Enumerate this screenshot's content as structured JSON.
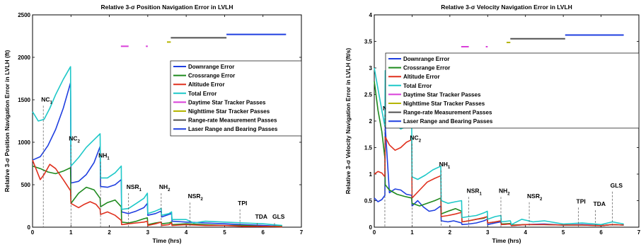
{
  "chart_data": [
    {
      "type": "line",
      "title": "Relative 3-σ Position Navigation Error in LVLH",
      "xlabel": "Time (hrs)",
      "ylabel": "Relative 3-σ Position Navigation Error in LVLH (ft)",
      "xlim": [
        0,
        7
      ],
      "ylim": [
        0,
        2500
      ],
      "xticks": [
        "0",
        "1",
        "2",
        "3",
        "4",
        "5",
        "6",
        "7"
      ],
      "yticks": [
        "0",
        "500",
        "1000",
        "1500",
        "2000",
        "2500"
      ],
      "legend": "upper-right",
      "series": [
        {
          "name": "Downrange Error",
          "color": "#1f3fe0",
          "x": [
            0,
            0.2,
            0.4,
            0.6,
            0.8,
            0.99,
            1.0,
            1.2,
            1.4,
            1.6,
            1.76,
            1.77,
            1.95,
            2.15,
            2.31,
            2.32,
            2.5,
            2.7,
            2.9,
            2.99,
            3.0,
            3.2,
            3.35,
            3.36,
            3.55,
            3.62,
            3.63,
            4.0,
            4.5,
            5.0,
            5.5,
            6.0,
            6.5
          ],
          "y": [
            790,
            830,
            960,
            1150,
            1400,
            1700,
            520,
            540,
            620,
            760,
            950,
            480,
            470,
            500,
            560,
            180,
            160,
            190,
            230,
            280,
            140,
            160,
            190,
            120,
            150,
            160,
            70,
            60,
            50,
            40,
            30,
            20,
            10
          ]
        },
        {
          "name": "Crossrange Error",
          "color": "#1e8a1e",
          "x": [
            0,
            0.2,
            0.4,
            0.6,
            0.8,
            0.99,
            1.0,
            1.2,
            1.4,
            1.6,
            1.76,
            1.77,
            1.95,
            2.15,
            2.31,
            2.32,
            2.5,
            2.7,
            2.9,
            2.99,
            3.0,
            3.2,
            3.35,
            3.36,
            3.55,
            3.62,
            3.63,
            4.0,
            4.5,
            5.0,
            5.5,
            6.0,
            6.5
          ],
          "y": [
            720,
            690,
            650,
            630,
            660,
            700,
            280,
            400,
            470,
            440,
            340,
            240,
            290,
            320,
            240,
            60,
            50,
            70,
            100,
            110,
            30,
            50,
            60,
            40,
            50,
            60,
            30,
            40,
            30,
            20,
            20,
            10,
            10
          ]
        },
        {
          "name": "Altitude Error",
          "color": "#e0301e",
          "x": [
            0,
            0.2,
            0.3,
            0.45,
            0.6,
            0.8,
            0.99,
            1.0,
            1.2,
            1.35,
            1.5,
            1.65,
            1.76,
            1.77,
            1.95,
            2.15,
            2.31,
            2.32,
            2.5,
            2.7,
            2.9,
            2.99,
            3.0,
            3.2,
            3.35,
            3.36,
            3.55,
            3.62,
            3.63,
            4.0,
            4.5,
            5.0,
            5.5,
            6.0,
            6.5
          ],
          "y": [
            790,
            560,
            620,
            740,
            690,
            560,
            430,
            280,
            230,
            270,
            300,
            270,
            210,
            150,
            180,
            140,
            80,
            30,
            40,
            50,
            60,
            70,
            20,
            40,
            60,
            20,
            30,
            50,
            20,
            30,
            20,
            20,
            10,
            10,
            5
          ]
        },
        {
          "name": "Total Error",
          "color": "#1ec8c8",
          "x": [
            0,
            0.15,
            0.3,
            0.45,
            0.6,
            0.8,
            0.99,
            1.0,
            1.2,
            1.4,
            1.6,
            1.76,
            1.77,
            1.95,
            2.15,
            2.31,
            2.32,
            2.5,
            2.7,
            2.9,
            2.99,
            3.0,
            3.2,
            3.35,
            3.36,
            3.55,
            3.62,
            3.63,
            4.0,
            4.2,
            4.5,
            5.0,
            5.5,
            6.0,
            6.5
          ],
          "y": [
            1360,
            1250,
            1270,
            1400,
            1560,
            1740,
            1890,
            720,
            820,
            940,
            1030,
            1100,
            580,
            580,
            640,
            720,
            210,
            220,
            280,
            340,
            400,
            160,
            190,
            220,
            140,
            160,
            180,
            90,
            90,
            50,
            70,
            60,
            50,
            40,
            20
          ]
        },
        {
          "name": "Daytime Star Tracker Passes",
          "color": "#d93fd9",
          "x": [
            2.3,
            2.5,
            2.95,
            3.0
          ],
          "y": [
            2130,
            2130,
            2130,
            2130
          ]
        },
        {
          "name": "Nighttime Star Tracker Passes",
          "color": "#b5b500",
          "x": [
            3.5,
            3.6
          ],
          "y": [
            2180,
            2180
          ]
        },
        {
          "name": "Range-rate Measurement Passes",
          "color": "#505050",
          "x": [
            3.6,
            5.05
          ],
          "y": [
            2230,
            2230
          ]
        },
        {
          "name": "Laser Range and Bearing Passes",
          "color": "#1f3fe0",
          "x": [
            5.05,
            6.6
          ],
          "y": [
            2270,
            2270
          ]
        }
      ],
      "events": [
        {
          "label": "NC",
          "sub": "1",
          "x": 0.28,
          "label_y": 1480
        },
        {
          "label": "NC",
          "sub": "2",
          "x": 1.0,
          "label_y": 1020
        },
        {
          "label": "NH",
          "sub": "1",
          "x": 1.77,
          "label_y": 820
        },
        {
          "label": "NSR",
          "sub": "1",
          "x": 2.5,
          "label_y": 450
        },
        {
          "label": "NH",
          "sub": "2",
          "x": 3.35,
          "label_y": 450
        },
        {
          "label": "NSR",
          "sub": "2",
          "x": 4.1,
          "label_y": 340
        },
        {
          "label": "TPI",
          "x": 5.4,
          "label_y": 260
        },
        {
          "label": "TDA",
          "x": 5.85,
          "label_y": 100
        },
        {
          "label": "GLS",
          "x": 6.3,
          "label_y": 100
        }
      ]
    },
    {
      "type": "line",
      "title": "Relative 3-σ Velocity Navigation Error in LVLH",
      "xlabel": "Time (hrs)",
      "ylabel": "Relative 3-σ Velocity Navigation Error in LVLH (ft/s)",
      "xlim": [
        0,
        7
      ],
      "ylim": [
        0,
        4
      ],
      "xticks": [
        "0",
        "1",
        "2",
        "3",
        "4",
        "5",
        "6",
        "7"
      ],
      "yticks": [
        "0",
        "0.5",
        "1",
        "1.5",
        "2",
        "2.5",
        "3",
        "3.5",
        "4"
      ],
      "legend": "upper-right",
      "series": [
        {
          "name": "Downrange Error",
          "color": "#1f3fe0",
          "x": [
            0,
            0.1,
            0.2,
            0.28,
            0.29,
            0.4,
            0.55,
            0.7,
            0.85,
            0.99,
            1.0,
            1.15,
            1.3,
            1.45,
            1.6,
            1.76,
            1.77,
            1.95,
            2.1,
            2.31,
            2.32,
            2.5,
            2.7,
            2.9,
            2.99,
            3.0,
            3.2,
            3.35,
            3.36,
            3.6,
            3.63,
            4.0,
            4.5,
            5.0,
            5.5,
            6.0,
            6.3,
            6.6
          ],
          "y": [
            0.55,
            0.48,
            0.52,
            0.6,
            1.9,
            0.65,
            0.72,
            0.7,
            0.62,
            0.6,
            0.4,
            0.5,
            0.38,
            0.3,
            0.32,
            0.4,
            0.12,
            0.1,
            0.12,
            0.08,
            0.05,
            0.06,
            0.08,
            0.12,
            0.15,
            0.05,
            0.08,
            0.1,
            0.05,
            0.06,
            0.03,
            0.05,
            0.06,
            0.04,
            0.05,
            0.03,
            0.05,
            0.04
          ]
        },
        {
          "name": "Crossrange Error",
          "color": "#1e8a1e",
          "x": [
            0,
            0.1,
            0.2,
            0.28,
            0.29,
            0.4,
            0.6,
            0.8,
            0.99,
            1.0,
            1.2,
            1.4,
            1.6,
            1.76,
            1.77,
            1.95,
            2.15,
            2.31,
            2.32,
            2.5,
            2.7,
            2.9,
            2.99,
            3.0,
            3.2,
            3.35,
            3.36,
            3.6,
            3.63,
            4.0,
            4.5,
            5.0,
            5.5,
            6.0,
            6.3,
            6.6
          ],
          "y": [
            2.75,
            2.2,
            1.8,
            1.3,
            0.8,
            0.7,
            0.62,
            0.58,
            0.55,
            0.45,
            0.4,
            0.45,
            0.5,
            0.55,
            0.25,
            0.3,
            0.35,
            0.3,
            0.1,
            0.12,
            0.15,
            0.17,
            0.2,
            0.08,
            0.1,
            0.12,
            0.06,
            0.07,
            0.04,
            0.05,
            0.05,
            0.04,
            0.04,
            0.03,
            0.05,
            0.04
          ]
        },
        {
          "name": "Altitude Error",
          "color": "#e0301e",
          "x": [
            0,
            0.1,
            0.2,
            0.28,
            0.29,
            0.4,
            0.55,
            0.7,
            0.85,
            0.99,
            1.0,
            1.2,
            1.4,
            1.6,
            1.76,
            1.77,
            1.95,
            2.15,
            2.31,
            2.32,
            2.5,
            2.7,
            2.9,
            2.99,
            3.0,
            3.2,
            3.35,
            3.36,
            3.6,
            3.63,
            4.0,
            4.5,
            5.0,
            5.5,
            6.0,
            6.3,
            6.6
          ],
          "y": [
            1.0,
            1.05,
            1.02,
            0.95,
            1.7,
            1.55,
            1.45,
            1.5,
            1.6,
            1.65,
            0.55,
            0.7,
            0.85,
            0.92,
            0.97,
            0.2,
            0.22,
            0.25,
            0.28,
            0.1,
            0.12,
            0.15,
            0.18,
            0.2,
            0.08,
            0.1,
            0.12,
            0.05,
            0.06,
            0.03,
            0.05,
            0.05,
            0.04,
            0.04,
            0.03,
            0.05,
            0.04
          ]
        },
        {
          "name": "Total Error",
          "color": "#1ec8c8",
          "x": [
            0,
            0.1,
            0.2,
            0.28,
            0.29,
            0.4,
            0.55,
            0.7,
            0.85,
            0.99,
            1.0,
            1.15,
            1.35,
            1.55,
            1.76,
            1.77,
            1.95,
            2.15,
            2.31,
            2.32,
            2.5,
            2.7,
            2.9,
            2.99,
            3.0,
            3.2,
            3.35,
            3.36,
            3.6,
            3.63,
            3.9,
            4.2,
            4.5,
            5.0,
            5.5,
            6.0,
            6.3,
            6.6
          ],
          "y": [
            3.0,
            2.6,
            2.2,
            1.9,
            2.95,
            2.2,
            1.95,
            1.85,
            1.9,
            1.95,
            0.95,
            0.9,
            0.98,
            1.08,
            1.15,
            0.5,
            0.45,
            0.48,
            0.5,
            0.18,
            0.2,
            0.22,
            0.27,
            0.3,
            0.15,
            0.2,
            0.22,
            0.1,
            0.12,
            0.05,
            0.15,
            0.1,
            0.12,
            0.06,
            0.08,
            0.05,
            0.1,
            0.06
          ]
        },
        {
          "name": "Daytime Star Tracker Passes",
          "color": "#d93fd9",
          "x": [
            2.3,
            2.5,
            2.95,
            3.0
          ],
          "y": [
            3.4,
            3.4,
            3.4,
            3.4
          ]
        },
        {
          "name": "Nighttime Star Tracker Passes",
          "color": "#b5b500",
          "x": [
            3.5,
            3.6
          ],
          "y": [
            3.48,
            3.48
          ]
        },
        {
          "name": "Range-rate Measurement Passes",
          "color": "#505050",
          "x": [
            3.6,
            5.05
          ],
          "y": [
            3.55,
            3.55
          ]
        },
        {
          "name": "Laser Range and Bearing Passes",
          "color": "#1f3fe0",
          "x": [
            5.05,
            6.6
          ],
          "y": [
            3.62,
            3.62
          ]
        }
      ],
      "events": [
        {
          "label": "NC",
          "sub": "1",
          "x": 0.28,
          "label_y": 2.2
        },
        {
          "label": "NC",
          "sub": "2",
          "x": 1.0,
          "label_y": 1.65
        },
        {
          "label": "NH",
          "sub": "1",
          "x": 1.77,
          "label_y": 1.15
        },
        {
          "label": "NSR",
          "sub": "1",
          "x": 2.5,
          "label_y": 0.65
        },
        {
          "label": "NH",
          "sub": "2",
          "x": 3.35,
          "label_y": 0.65
        },
        {
          "label": "NSR",
          "sub": "2",
          "x": 4.1,
          "label_y": 0.55
        },
        {
          "label": "TPI",
          "x": 5.4,
          "label_y": 0.45
        },
        {
          "label": "TDA",
          "x": 5.85,
          "label_y": 0.4
        },
        {
          "label": "GLS",
          "x": 6.3,
          "label_y": 0.75
        }
      ]
    }
  ]
}
